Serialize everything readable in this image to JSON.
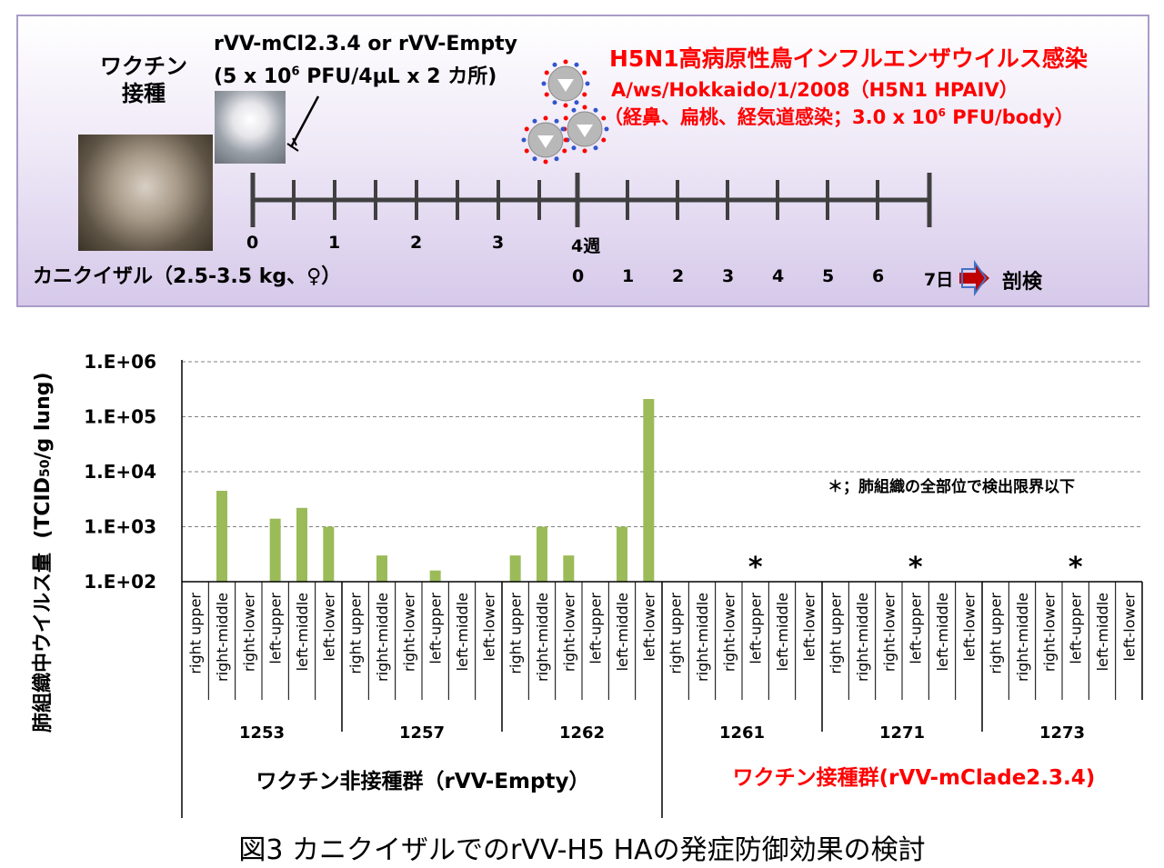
{
  "protocol": {
    "vaccine_label_line1": "ワクチン",
    "vaccine_label_line2": "接種",
    "vaccine_name": "rVV-mCl2.3.4   or   rVV-Empty",
    "vaccine_dose": "(5 x 10",
    "vaccine_dose_exp": "6",
    "vaccine_dose_rest": " PFU/4μL x 2 カ所)",
    "infection_title": "H5N1高病原性鳥インフルエンザウイルス感染",
    "infection_strain": "A/ws/Hokkaido/1/2008（H5N1 HPAIV）",
    "infection_route": "（経鼻、扁桃、経気道感染；3.0 x 10",
    "infection_route_exp": "6",
    "infection_route_rest": " PFU/body）",
    "animal": "カニクイザル（2.5-3.5 kg、♀）",
    "week_ticks": [
      "0",
      "1",
      "2",
      "3",
      "4週"
    ],
    "day_ticks": [
      "0",
      "1",
      "2",
      "3",
      "4",
      "5",
      "6",
      "7日"
    ],
    "necropsy": "剖検"
  },
  "chart_data": {
    "type": "bar",
    "ylabel": "肺組織中ウイルス量  (TCID50/g lung)",
    "ylabel_main": "肺組織中ウイルス量",
    "ylabel_unit_pre": "(TCID",
    "ylabel_unit_sub": "50",
    "ylabel_unit_post": "/g lung)",
    "y_scale": "log",
    "ylim": [
      100,
      1000000
    ],
    "yticks": [
      "1.E+02",
      "1.E+03",
      "1.E+04",
      "1.E+05",
      "1.E+06"
    ],
    "grid": true,
    "color": "#9bbb59",
    "note": "＊；肺組織の全部位で検出限界以下",
    "categories": [
      "right upper",
      "right-middle",
      "right-lower",
      "left-upper",
      "left-middle",
      "left-lower"
    ],
    "animals": [
      {
        "id": "1253",
        "values": [
          null,
          4500,
          null,
          1400,
          2200,
          1000
        ],
        "below_limit": false
      },
      {
        "id": "1257",
        "values": [
          null,
          300,
          null,
          160,
          null,
          null
        ],
        "below_limit": false
      },
      {
        "id": "1262",
        "values": [
          300,
          1000,
          300,
          null,
          1000,
          210000
        ],
        "below_limit": false
      },
      {
        "id": "1261",
        "values": [
          null,
          null,
          null,
          null,
          null,
          null
        ],
        "below_limit": true
      },
      {
        "id": "1271",
        "values": [
          null,
          null,
          null,
          null,
          null,
          null
        ],
        "below_limit": true
      },
      {
        "id": "1273",
        "values": [
          null,
          null,
          null,
          null,
          null,
          null
        ],
        "below_limit": true
      }
    ],
    "below_limit_marker": "*",
    "groups": [
      {
        "label": "ワクチン非接種群（rVV-Empty）",
        "color": "#000000"
      },
      {
        "label": "ワクチン接種群(rVV-mClade2.3.4)",
        "color": "#ff0000"
      }
    ]
  },
  "caption": "図3 カニクイザルでのrVV-H5 HAの発症防御効果の検討"
}
